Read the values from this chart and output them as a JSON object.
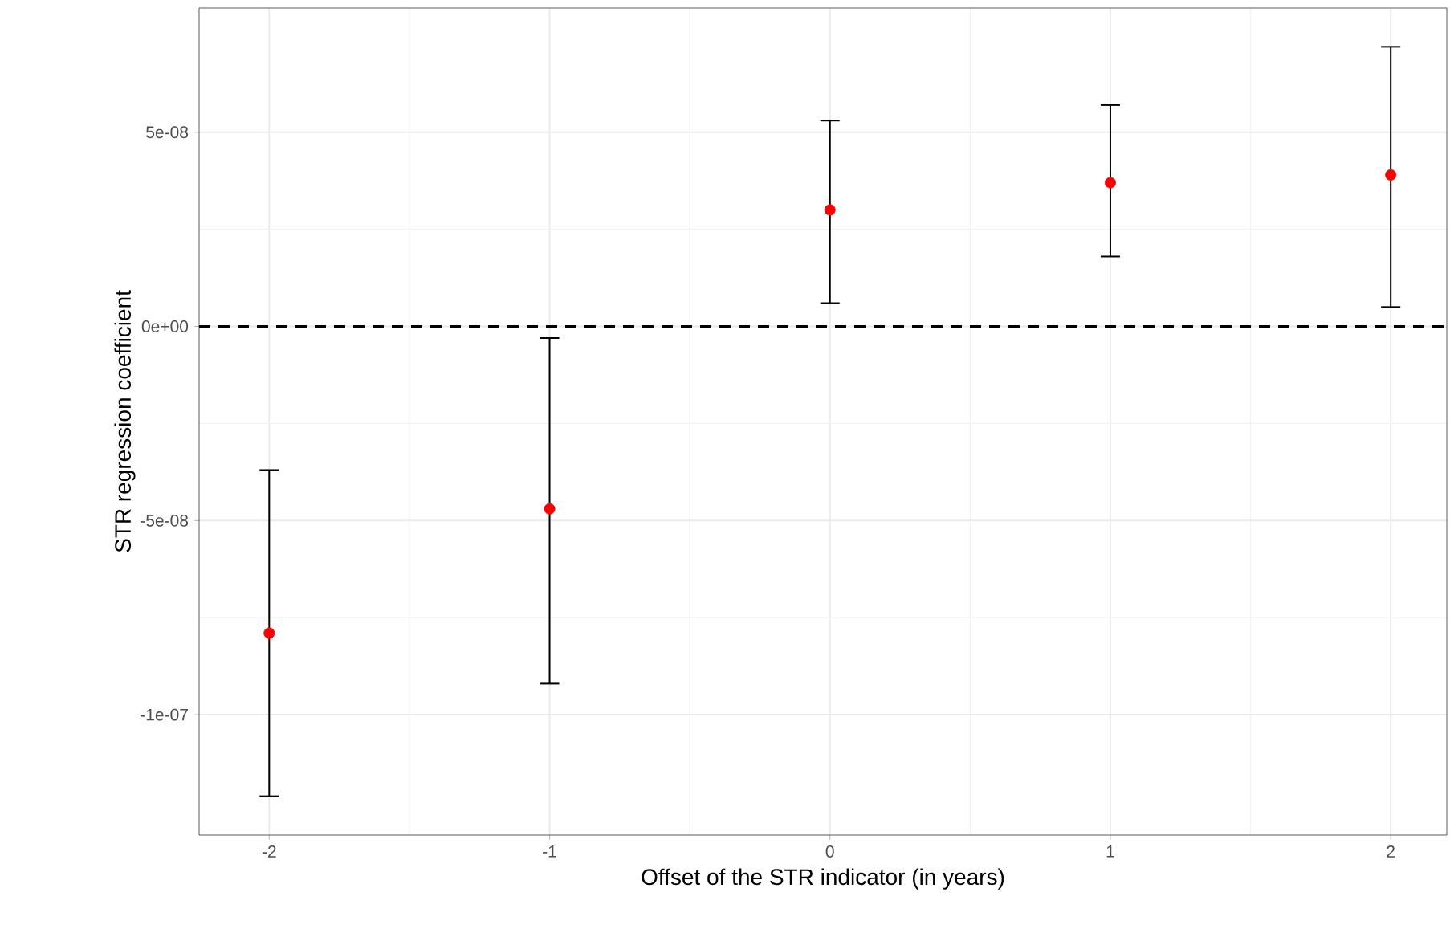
{
  "chart_data": {
    "type": "scatter",
    "xlabel": "Offset of the STR indicator (in years)",
    "ylabel": "STR regression coefficient",
    "x": [
      -2,
      -1,
      0,
      1,
      2
    ],
    "series": [
      {
        "color": "#ff0000",
        "values": [
          -7.9e-08,
          -4.7e-08,
          3e-08,
          3.7e-08,
          3.9e-08
        ],
        "errors": [
          [
            -1.21e-07,
            -3.7e-08
          ],
          [
            -9.2e-08,
            -3e-09
          ],
          [
            6e-09,
            5.3e-08
          ],
          [
            1.8e-08,
            5.7e-08
          ],
          [
            5e-09,
            7.2e-08
          ]
        ]
      }
    ],
    "marker": "circle",
    "xlim": [
      -2.25,
      2.2
    ],
    "ylim": [
      -1.31e-07,
      8.2e-08
    ],
    "xticks": [
      -2,
      -1,
      0,
      1,
      2
    ],
    "yticks": [
      {
        "value": -1e-07,
        "label": "-1e-07"
      },
      {
        "value": -5e-08,
        "label": "-5e-08"
      },
      {
        "value": 0,
        "label": "0e+00"
      },
      {
        "value": 5e-08,
        "label": "5e-08"
      }
    ],
    "grid": true,
    "ref_lines": [
      {
        "axis": "y",
        "value": 0,
        "color": "#000000",
        "line_style": "dashed"
      }
    ]
  }
}
